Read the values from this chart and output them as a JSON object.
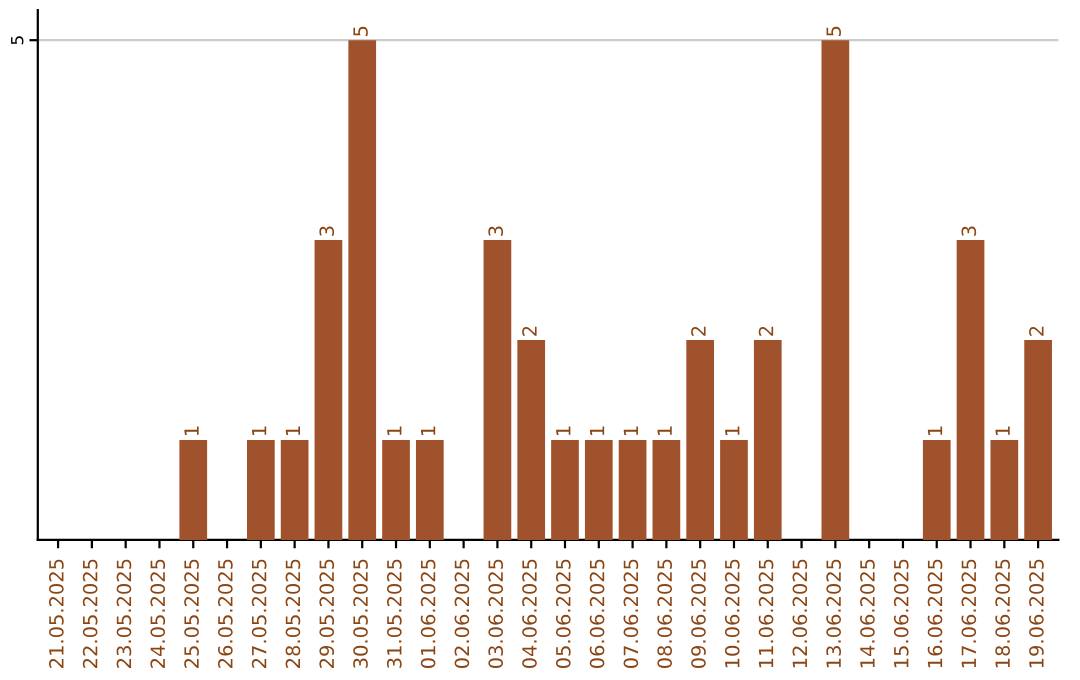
{
  "chart_data": {
    "type": "bar",
    "categories": [
      "21.05.2025",
      "22.05.2025",
      "23.05.2025",
      "24.05.2025",
      "25.05.2025",
      "26.05.2025",
      "27.05.2025",
      "28.05.2025",
      "29.05.2025",
      "30.05.2025",
      "31.05.2025",
      "01.06.2025",
      "02.06.2025",
      "03.06.2025",
      "04.06.2025",
      "05.06.2025",
      "06.06.2025",
      "07.06.2025",
      "08.06.2025",
      "09.06.2025",
      "10.06.2025",
      "11.06.2025",
      "12.06.2025",
      "13.06.2025",
      "14.06.2025",
      "15.06.2025",
      "16.06.2025",
      "17.06.2025",
      "18.06.2025",
      "19.06.2025"
    ],
    "values": [
      0,
      0,
      0,
      0,
      1,
      0,
      1,
      1,
      3,
      5,
      1,
      1,
      0,
      3,
      2,
      1,
      1,
      1,
      1,
      2,
      1,
      2,
      0,
      5,
      0,
      0,
      1,
      3,
      1,
      2
    ],
    "value_labels": [
      null,
      null,
      null,
      null,
      "1",
      null,
      "1",
      "1",
      "3",
      "5",
      "1",
      "1",
      null,
      "3",
      "2",
      "1",
      "1",
      "1",
      "1",
      "2",
      "1",
      "2",
      null,
      "5",
      null,
      null,
      "1",
      "3",
      "1",
      "2"
    ],
    "color": "#a0522d",
    "ylim": [
      0,
      5.3
    ],
    "yticks": [
      5
    ],
    "grid": "y",
    "legend": false
  }
}
